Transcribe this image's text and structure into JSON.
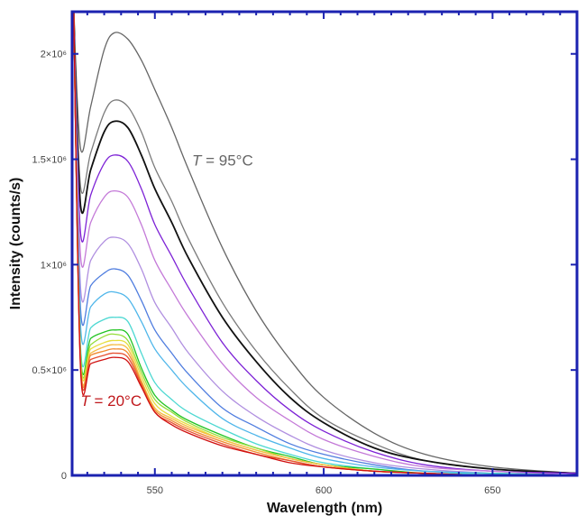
{
  "chart_data": {
    "type": "line",
    "title": "",
    "xlabel": "Wavelength (nm)",
    "ylabel": "Intensity (counts/s)",
    "xlim": [
      525.5,
      675
    ],
    "ylim": [
      0,
      2.2
    ],
    "y_unit_multiplier": 1000000,
    "grid": false,
    "x_ticks": [
      {
        "value": 550,
        "label": "550"
      },
      {
        "value": 600,
        "label": "600"
      },
      {
        "value": 650,
        "label": "650"
      }
    ],
    "y_ticks": [
      {
        "value": 0,
        "label": "0"
      },
      {
        "value": 0.5,
        "label": "0.5×10⁶"
      },
      {
        "value": 1,
        "label": "1×10⁶"
      },
      {
        "value": 1.5,
        "label": "1.5×10⁶"
      },
      {
        "value": 2,
        "label": "2×10⁶"
      }
    ],
    "x": [
      526,
      528,
      531,
      535,
      538,
      542,
      546,
      550,
      555,
      560,
      570,
      580,
      590,
      600,
      615,
      630,
      650,
      675
    ],
    "series": [
      {
        "color": "#666666",
        "values": [
          2.2,
          1.55,
          1.75,
          2.02,
          2.1,
          2.07,
          1.97,
          1.83,
          1.65,
          1.45,
          1.08,
          0.78,
          0.55,
          0.37,
          0.2,
          0.1,
          0.04,
          0.01
        ]
      },
      {
        "color": "#7a7a7a",
        "values": [
          2.2,
          1.37,
          1.53,
          1.72,
          1.78,
          1.75,
          1.63,
          1.46,
          1.3,
          1.12,
          0.82,
          0.59,
          0.41,
          0.27,
          0.15,
          0.07,
          0.03,
          0.01
        ]
      },
      {
        "color": "#111111",
        "values": [
          2.2,
          1.28,
          1.45,
          1.63,
          1.68,
          1.65,
          1.52,
          1.36,
          1.2,
          1.03,
          0.75,
          0.54,
          0.37,
          0.25,
          0.13,
          0.07,
          0.03,
          0.01
        ]
      },
      {
        "color": "#7d22d6",
        "values": [
          2.2,
          1.15,
          1.33,
          1.48,
          1.52,
          1.49,
          1.36,
          1.19,
          1.04,
          0.89,
          0.63,
          0.45,
          0.31,
          0.21,
          0.11,
          0.05,
          0.02,
          0.01
        ]
      },
      {
        "color": "#c47ad8",
        "values": [
          2.2,
          1.04,
          1.2,
          1.32,
          1.35,
          1.32,
          1.19,
          1.02,
          0.88,
          0.75,
          0.53,
          0.37,
          0.26,
          0.17,
          0.09,
          0.04,
          0.02,
          0.0
        ]
      },
      {
        "color": "#b08fe0",
        "values": [
          2.2,
          0.89,
          1.02,
          1.11,
          1.13,
          1.1,
          0.98,
          0.82,
          0.7,
          0.58,
          0.4,
          0.28,
          0.19,
          0.12,
          0.06,
          0.03,
          0.01,
          0.0
        ]
      },
      {
        "color": "#4f7ddf",
        "values": [
          2.2,
          0.79,
          0.9,
          0.96,
          0.98,
          0.95,
          0.83,
          0.69,
          0.58,
          0.48,
          0.32,
          0.23,
          0.15,
          0.1,
          0.05,
          0.02,
          0.01,
          0.0
        ]
      },
      {
        "color": "#4fb6ea",
        "values": [
          2.2,
          0.71,
          0.8,
          0.86,
          0.87,
          0.84,
          0.73,
          0.6,
          0.5,
          0.41,
          0.27,
          0.19,
          0.13,
          0.08,
          0.04,
          0.02,
          0.01,
          0.0
        ]
      },
      {
        "color": "#4dd8d2",
        "values": [
          2.2,
          0.61,
          0.7,
          0.74,
          0.75,
          0.73,
          0.58,
          0.44,
          0.36,
          0.3,
          0.22,
          0.15,
          0.1,
          0.06,
          0.03,
          0.01,
          0.01,
          0.0
        ]
      },
      {
        "color": "#22c422",
        "values": [
          2.2,
          0.58,
          0.65,
          0.68,
          0.69,
          0.67,
          0.51,
          0.38,
          0.31,
          0.26,
          0.19,
          0.13,
          0.09,
          0.05,
          0.03,
          0.01,
          0.0,
          0.0
        ]
      },
      {
        "color": "#95dc3a",
        "values": [
          2.2,
          0.57,
          0.62,
          0.66,
          0.67,
          0.64,
          0.49,
          0.36,
          0.3,
          0.25,
          0.18,
          0.13,
          0.08,
          0.05,
          0.02,
          0.01,
          0.0,
          0.0
        ]
      },
      {
        "color": "#e6de3e",
        "values": [
          2.2,
          0.56,
          0.6,
          0.63,
          0.64,
          0.62,
          0.47,
          0.34,
          0.28,
          0.24,
          0.17,
          0.12,
          0.08,
          0.05,
          0.02,
          0.01,
          0.0,
          0.0
        ]
      },
      {
        "color": "#f5bb42",
        "values": [
          2.2,
          0.54,
          0.58,
          0.61,
          0.62,
          0.6,
          0.45,
          0.32,
          0.27,
          0.23,
          0.17,
          0.12,
          0.08,
          0.05,
          0.02,
          0.01,
          0.0,
          0.0
        ]
      },
      {
        "color": "#f08a30",
        "values": [
          2.2,
          0.53,
          0.57,
          0.59,
          0.6,
          0.58,
          0.44,
          0.31,
          0.26,
          0.22,
          0.16,
          0.11,
          0.07,
          0.04,
          0.02,
          0.01,
          0.0,
          0.0
        ]
      },
      {
        "color": "#e65030",
        "values": [
          2.2,
          0.52,
          0.55,
          0.57,
          0.58,
          0.56,
          0.43,
          0.3,
          0.25,
          0.21,
          0.15,
          0.1,
          0.07,
          0.04,
          0.02,
          0.01,
          0.0,
          0.0
        ]
      },
      {
        "color": "#d01010",
        "values": [
          2.2,
          0.5,
          0.53,
          0.55,
          0.56,
          0.54,
          0.42,
          0.3,
          0.24,
          0.2,
          0.14,
          0.1,
          0.06,
          0.04,
          0.02,
          0.01,
          0.0,
          0.0
        ]
      }
    ],
    "annotations": [
      {
        "italic": "T",
        "text": " = 95°C",
        "color": "#666666",
        "x": 561,
        "y": 1.47
      },
      {
        "italic": "T",
        "text": " = 20°C",
        "color": "#c0181c",
        "x": 528,
        "y": 0.33
      }
    ],
    "axis_color": "#1b22b0"
  }
}
